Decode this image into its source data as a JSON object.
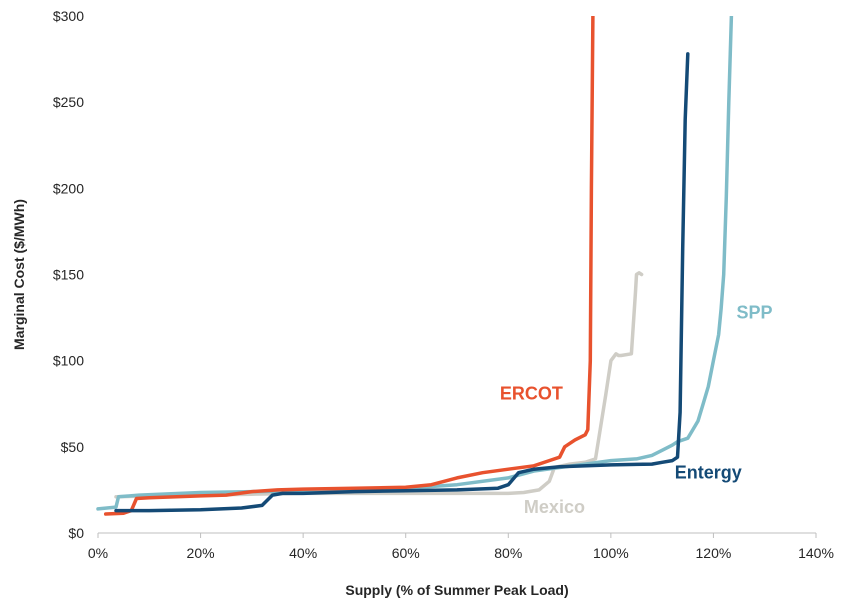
{
  "chart_data": {
    "type": "line",
    "title": "",
    "xlabel": "Supply (% of Summer Peak Load)",
    "ylabel": "Marginal Cost ($/MWh)",
    "xlim": [
      0,
      140
    ],
    "ylim": [
      0,
      300
    ],
    "x_ticks": [
      0,
      20,
      40,
      60,
      80,
      100,
      120,
      140
    ],
    "x_tick_labels": [
      "0%",
      "20%",
      "40%",
      "60%",
      "80%",
      "100%",
      "120%",
      "140%"
    ],
    "y_ticks": [
      0,
      50,
      100,
      150,
      200,
      250,
      300
    ],
    "y_tick_labels": [
      "$0",
      "$50",
      "$100",
      "$150",
      "$200",
      "$250",
      "$300"
    ],
    "grid": false,
    "legend": "none (series labeled directly on chart)",
    "series": [
      {
        "name": "Mexico",
        "color": "#cfcdc6",
        "x": [
          3.5,
          10,
          20,
          30,
          40,
          50,
          60,
          70,
          75,
          80,
          83,
          86,
          88,
          89,
          92,
          95,
          97,
          99,
          100,
          101,
          101.5,
          102,
          104,
          104.8,
          105,
          105.5,
          106
        ],
        "y": [
          21,
          21.5,
          22,
          22.5,
          23,
          23,
          23,
          23,
          23,
          23,
          23.5,
          25,
          30,
          38,
          40,
          41,
          43,
          80,
          100,
          104,
          103,
          103,
          104,
          140,
          150,
          151,
          150
        ]
      },
      {
        "name": "SPP",
        "color": "#7fbcc8",
        "x": [
          0,
          3.5,
          4,
          8,
          20,
          30,
          40,
          50,
          60,
          70,
          80,
          85,
          90,
          95,
          100,
          105,
          108,
          110,
          112,
          113,
          115,
          116,
          117,
          118,
          119,
          120,
          121,
          121.5,
          122,
          122.5,
          123,
          123.5
        ],
        "y": [
          14,
          15,
          21,
          22,
          23.5,
          24,
          24.5,
          25,
          26,
          28,
          32,
          36,
          38,
          40,
          42,
          43,
          45,
          48,
          51,
          53,
          55,
          60,
          65,
          75,
          85,
          100,
          115,
          130,
          150,
          195,
          250,
          300
        ]
      },
      {
        "name": "ERCOT",
        "color": "#e8522e",
        "x": [
          1.5,
          5,
          6.5,
          7.5,
          10,
          20,
          25,
          30,
          35,
          40,
          50,
          60,
          65,
          70,
          75,
          80,
          85,
          88,
          90,
          91,
          93,
          95,
          95.5,
          96,
          96.2,
          96.5
        ],
        "y": [
          11,
          11.5,
          13,
          20,
          20.5,
          21.5,
          22,
          24,
          25,
          25.5,
          26,
          26.5,
          28,
          32,
          35,
          37,
          39,
          42,
          44,
          50,
          54,
          57,
          60,
          100,
          200,
          300
        ]
      },
      {
        "name": "Entergy",
        "color": "#144a76",
        "x": [
          3.5,
          10,
          20,
          28,
          32,
          34,
          36,
          40,
          50,
          60,
          70,
          78,
          80,
          82,
          85,
          90,
          100,
          108,
          110,
          112,
          113,
          113.5,
          114,
          114.5,
          115
        ],
        "y": [
          13,
          13,
          13.5,
          14.5,
          16,
          22,
          23,
          23,
          24,
          24.5,
          25,
          26,
          28,
          35,
          37,
          38.5,
          39.5,
          40,
          41,
          42,
          44,
          70,
          165,
          240,
          278
        ]
      }
    ],
    "annotations": [
      {
        "series": "ERCOT",
        "text": "ERCOT",
        "at": [
          84.5,
          81
        ]
      },
      {
        "series": "SPP",
        "text": "SPP",
        "at": [
          128,
          128
        ]
      },
      {
        "series": "Entergy",
        "text": "Entergy",
        "at": [
          119,
          35
        ]
      },
      {
        "series": "Mexico",
        "text": "Mexico",
        "at": [
          89,
          15
        ]
      }
    ]
  }
}
